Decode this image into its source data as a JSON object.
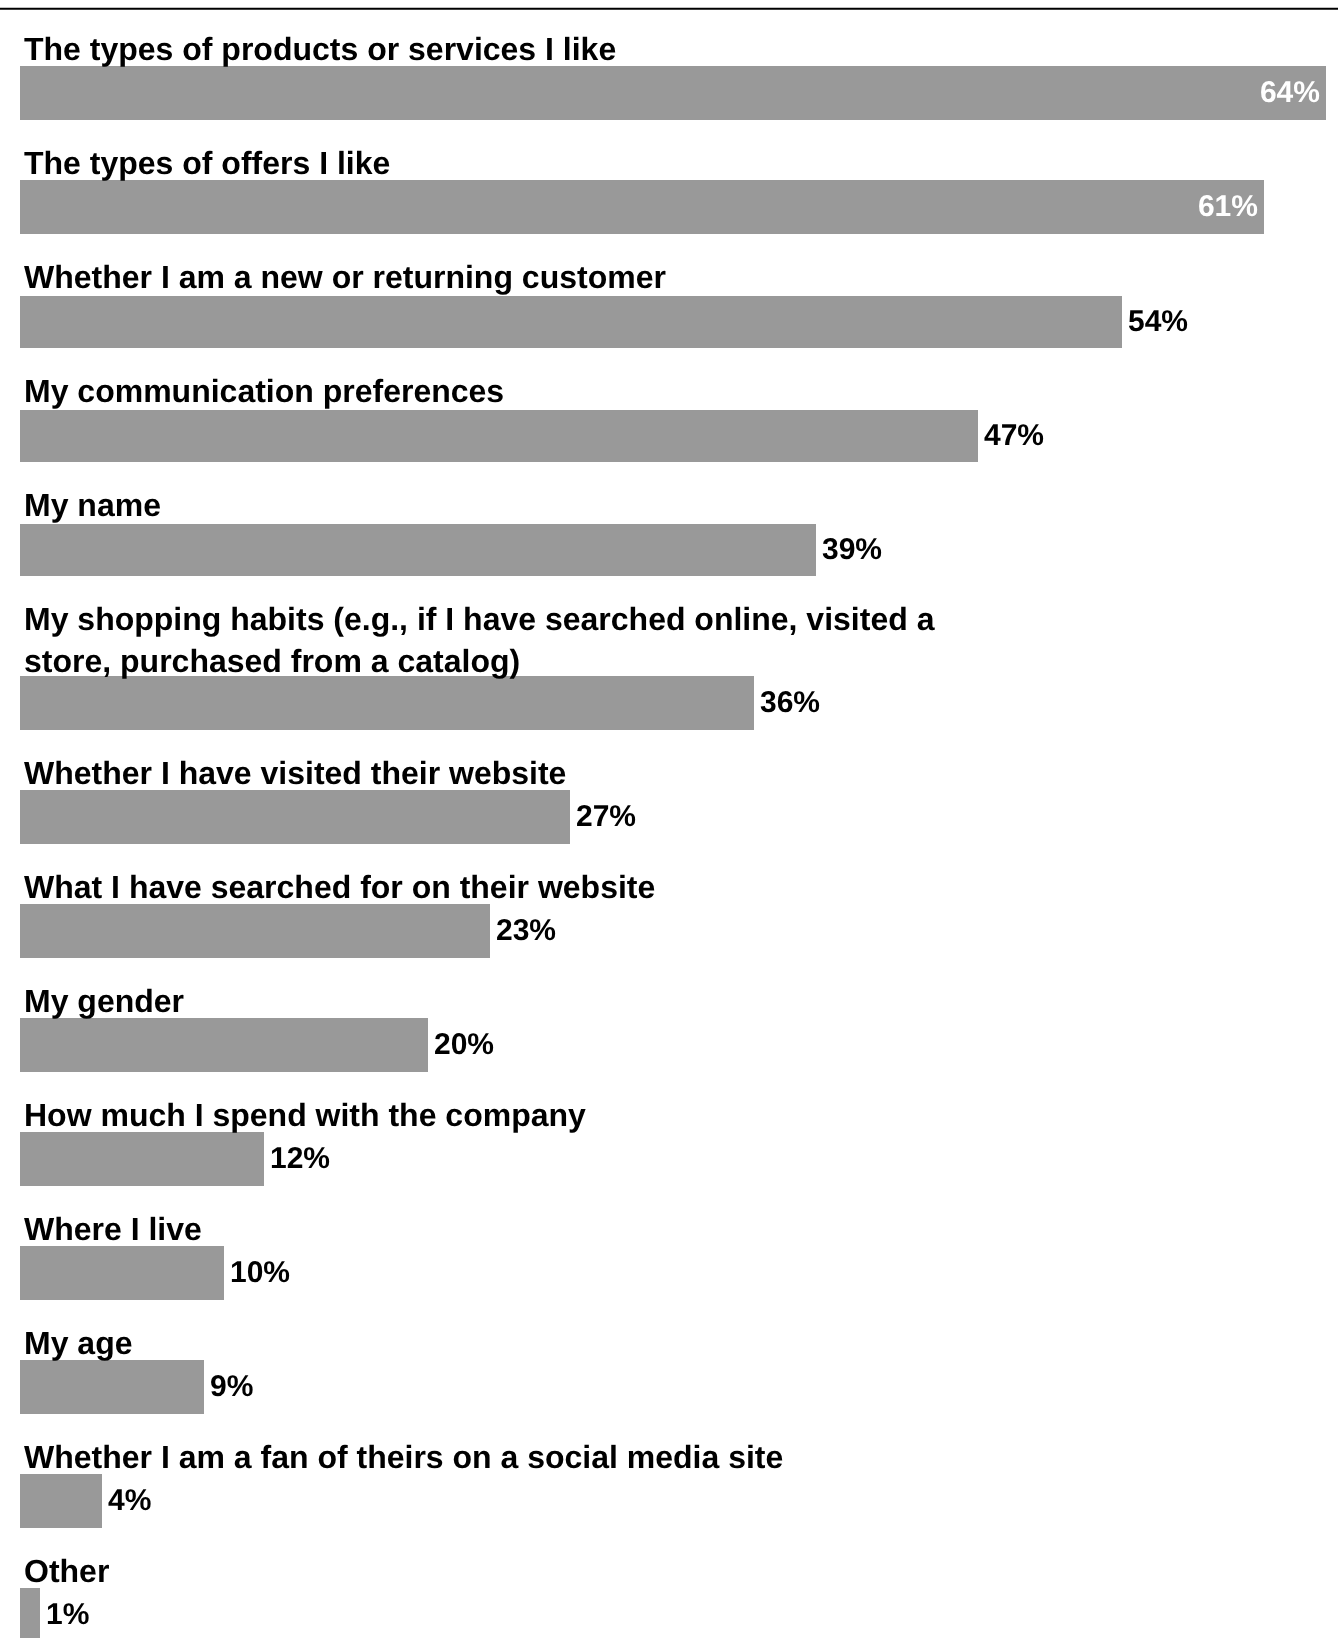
{
  "chart_data": {
    "type": "bar",
    "orientation": "horizontal",
    "categories": [
      "The types of products or services I like",
      "The types of offers I like",
      "Whether I am a new or returning customer",
      "My communication preferences",
      "My name",
      "My shopping habits (e.g., if I have searched online, visited a store, purchased from a catalog)",
      "Whether I have visited their website",
      "What I have searched for on their website",
      "My gender",
      "How much I spend with the company",
      "Where I live",
      "My age",
      "Whether I am a fan of theirs on a social media site",
      "Other"
    ],
    "values": [
      64,
      61,
      54,
      47,
      39,
      36,
      27,
      23,
      20,
      12,
      10,
      9,
      4,
      1
    ],
    "value_labels": [
      "64%",
      "61%",
      "54%",
      "47%",
      "39%",
      "36%",
      "27%",
      "23%",
      "20%",
      "12%",
      "10%",
      "9%",
      "4%",
      "1%"
    ],
    "color": "#999999",
    "legend": false
  }
}
